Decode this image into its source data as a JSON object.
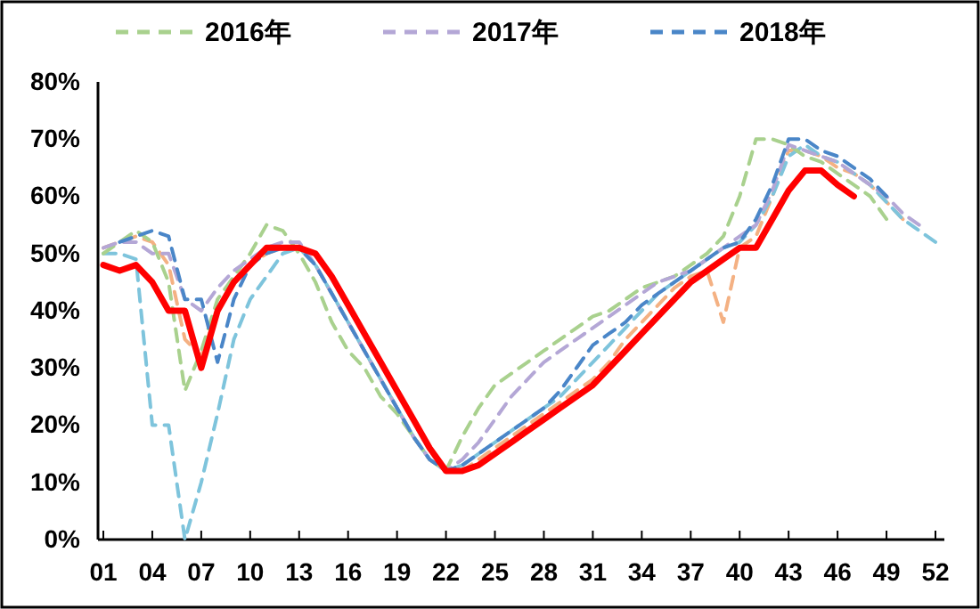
{
  "chart_data": {
    "type": "line",
    "categories": [
      "01",
      null,
      null,
      "04",
      null,
      null,
      "07",
      null,
      null,
      "10",
      null,
      null,
      "13",
      null,
      null,
      "16",
      null,
      null,
      "19",
      null,
      null,
      "22",
      null,
      null,
      "25",
      null,
      null,
      "28",
      null,
      null,
      "31",
      null,
      null,
      "34",
      null,
      null,
      "37",
      null,
      null,
      "40",
      null,
      null,
      "43",
      null,
      null,
      "46",
      null,
      null,
      "49",
      null,
      null,
      "52"
    ],
    "ylim": [
      0,
      80
    ],
    "yticks": [
      {
        "value": 0,
        "label": "0%"
      },
      {
        "value": 10,
        "label": "10%"
      },
      {
        "value": 20,
        "label": "20%"
      },
      {
        "value": 30,
        "label": "30%"
      },
      {
        "value": 40,
        "label": "40%"
      },
      {
        "value": 50,
        "label": "50%"
      },
      {
        "value": 60,
        "label": "60%"
      },
      {
        "value": 70,
        "label": "70%"
      },
      {
        "value": 80,
        "label": "80%"
      }
    ],
    "legend": "top",
    "marker": "none",
    "series": [
      {
        "color": "#f4b183",
        "line_style": "dashed",
        "values": [
          51,
          52,
          53,
          52,
          48,
          35,
          32,
          40,
          45,
          48,
          50,
          51,
          51,
          48,
          43,
          38,
          33,
          28,
          23,
          18,
          14,
          12,
          12,
          14,
          16,
          18,
          20,
          22,
          24,
          26,
          28,
          31,
          35,
          38,
          41,
          44,
          46,
          47,
          38,
          51,
          53,
          60,
          68,
          68,
          67,
          65,
          64,
          62,
          59,
          56,
          null,
          null
        ]
      },
      {
        "color": "#7ec4dc",
        "line_style": "dashed",
        "values": [
          50,
          50,
          49,
          20,
          20,
          0,
          10,
          22,
          35,
          42,
          46,
          50,
          51,
          48,
          43,
          38,
          33,
          28,
          23,
          18,
          14,
          12,
          13,
          15,
          17,
          19,
          21,
          23,
          25,
          28,
          31,
          34,
          37,
          40,
          43,
          45,
          47,
          49,
          51,
          52,
          55,
          60,
          67,
          69,
          67,
          66,
          64,
          62,
          59,
          56,
          54,
          52
        ]
      },
      {
        "name": "2016年",
        "color": "#a9d18e",
        "line_style": "dashed",
        "values": [
          50,
          52,
          54,
          52,
          45,
          26,
          33,
          42,
          46,
          50,
          55,
          54,
          50,
          45,
          38,
          33,
          30,
          25,
          22,
          18,
          14,
          12,
          18,
          23,
          27,
          29,
          31,
          33,
          35,
          37,
          39,
          40,
          42,
          44,
          45,
          46,
          48,
          50,
          53,
          60,
          70,
          70,
          69,
          67,
          66,
          64,
          62,
          60,
          56,
          null,
          null,
          null
        ]
      },
      {
        "name": "2017年",
        "color": "#b4a7d6",
        "line_style": "dashed",
        "values": [
          51,
          52,
          52,
          50,
          50,
          42,
          40,
          44,
          47,
          49,
          51,
          52,
          52,
          48,
          43,
          38,
          33,
          28,
          23,
          18,
          14,
          12,
          14,
          17,
          21,
          25,
          28,
          31,
          33,
          35,
          37,
          39,
          41,
          43,
          45,
          46,
          47,
          49,
          51,
          53,
          55,
          61,
          69,
          68,
          67,
          66,
          64,
          62,
          60,
          57,
          55,
          null
        ]
      },
      {
        "name": "2018年",
        "color": "#4a86c8",
        "line_style": "dashed",
        "values": [
          null,
          52,
          53,
          54,
          53,
          42,
          42,
          31,
          42,
          48,
          50,
          51,
          51,
          48,
          43,
          38,
          33,
          28,
          23,
          18,
          14,
          12,
          13,
          15,
          17,
          19,
          21,
          23,
          26,
          30,
          34,
          36,
          38,
          41,
          43,
          45,
          47,
          49,
          51,
          52,
          56,
          62,
          70,
          70,
          68,
          67,
          65,
          63,
          60,
          null,
          null,
          null
        ]
      },
      {
        "color": "#ff0000",
        "line_style": "solid",
        "values": [
          48,
          47,
          48,
          45,
          40,
          40,
          30,
          40,
          45,
          48,
          51,
          51,
          51,
          50,
          46,
          41,
          36,
          31,
          26,
          21,
          16,
          12,
          12,
          13,
          15,
          17,
          19,
          21,
          23,
          25,
          27,
          30,
          33,
          36,
          39,
          42,
          45,
          47,
          49,
          51,
          51,
          56,
          61,
          64.5,
          64.5,
          62,
          60,
          null,
          null,
          null,
          null,
          null
        ]
      }
    ]
  }
}
